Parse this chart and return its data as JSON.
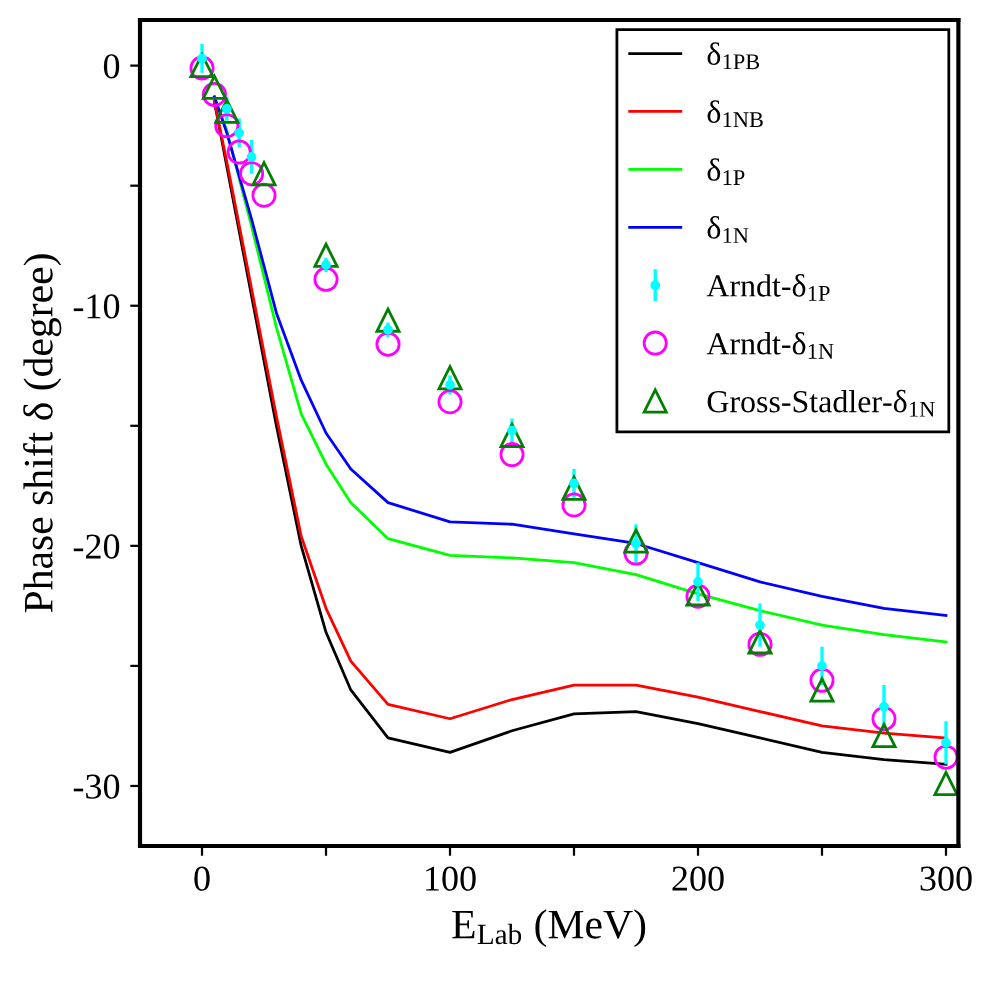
{
  "chart_data": {
    "type": "line",
    "xlabel": "E$_{Lab}$ (MeV)",
    "ylabel": "Phase shift δ (degree)",
    "xlim": [
      -25,
      305
    ],
    "ylim": [
      -32.5,
      1.9
    ],
    "xticks": [
      0,
      {
        "value": 50,
        "label": null
      },
      100,
      {
        "value": 150,
        "label": null
      },
      200,
      {
        "value": 250,
        "label": null
      },
      300
    ],
    "yticks": [
      {
        "value": -30,
        "label": "-30"
      },
      {
        "value": -25,
        "label": null
      },
      {
        "value": -20,
        "label": "-20"
      },
      {
        "value": -15,
        "label": null
      },
      {
        "value": -10,
        "label": "-10"
      },
      {
        "value": -5,
        "label": null
      },
      0
    ],
    "grid": false,
    "legend": "top right",
    "series": [
      {
        "name": "δ$_{1PB}$",
        "color": "#000000",
        "x": [
          5,
          10,
          20,
          30,
          40,
          50,
          60,
          75,
          100,
          125,
          150,
          175,
          200,
          225,
          250,
          275,
          300
        ],
        "values": [
          -1.5,
          -4.2,
          -9.6,
          -15.0,
          -20.0,
          -23.6,
          -26.0,
          -28.0,
          -28.6,
          -27.7,
          -27.0,
          -26.9,
          -27.4,
          -28.0,
          -28.6,
          -28.9,
          -29.1
        ]
      },
      {
        "name": "δ$_{1NB}$",
        "color": "#ff0000",
        "x": [
          5,
          10,
          20,
          30,
          40,
          50,
          60,
          75,
          100,
          125,
          150,
          175,
          200,
          225,
          250,
          275,
          300
        ],
        "values": [
          -1.5,
          -4.0,
          -9.3,
          -14.6,
          -19.6,
          -22.6,
          -24.8,
          -26.6,
          -27.2,
          -26.4,
          -25.8,
          -25.8,
          -26.3,
          -26.9,
          -27.5,
          -27.8,
          -28.0
        ]
      },
      {
        "name": "δ$_{1P}$",
        "color": "#00ff00",
        "x": [
          5,
          10,
          20,
          30,
          40,
          50,
          60,
          75,
          100,
          125,
          150,
          175,
          200,
          225,
          250,
          275,
          300
        ],
        "values": [
          -1.3,
          -2.7,
          -6.7,
          -10.9,
          -14.5,
          -16.6,
          -18.2,
          -19.7,
          -20.4,
          -20.5,
          -20.7,
          -21.2,
          -22.0,
          -22.7,
          -23.3,
          -23.7,
          -24.0
        ]
      },
      {
        "name": "δ$_{1N}$",
        "color": "#0000ff",
        "x": [
          5,
          10,
          20,
          30,
          40,
          50,
          60,
          75,
          100,
          125,
          150,
          175,
          200,
          225,
          250,
          275,
          300
        ],
        "values": [
          -1.3,
          -2.8,
          -6.4,
          -10.3,
          -13.1,
          -15.3,
          -16.8,
          -18.2,
          -19.0,
          -19.1,
          -19.5,
          -19.9,
          -20.7,
          -21.5,
          -22.1,
          -22.6,
          -22.9
        ]
      },
      {
        "name": "Arndt-δ$_{1P}$",
        "type": "scatter",
        "color": "#00ffff",
        "errors": [
          0.6,
          0.5,
          0.6,
          0.7,
          0.3,
          0.3,
          0.4,
          0.5,
          0.6,
          0.8,
          0.8,
          0.9,
          0.8,
          0.9,
          0.9
        ],
        "x": [
          0,
          10,
          15,
          20,
          50,
          75,
          100,
          125,
          150,
          175,
          200,
          225,
          250,
          275,
          300
        ],
        "values": [
          0.3,
          -1.8,
          -2.8,
          -3.8,
          -8.3,
          -11.0,
          -13.3,
          -15.2,
          -17.4,
          -19.9,
          -21.5,
          -23.3,
          -25.0,
          -26.7,
          -28.2
        ]
      },
      {
        "name": "Arndt-δ$_{1N}$",
        "type": "scatter",
        "marker": "circle",
        "color": "#ff00ff",
        "x": [
          0,
          5,
          10,
          15,
          20,
          25,
          50,
          75,
          100,
          125,
          150,
          175,
          200,
          225,
          250,
          275,
          300
        ],
        "values": [
          -0.1,
          -1.2,
          -2.5,
          -3.6,
          -4.5,
          -5.4,
          -8.9,
          -11.6,
          -14.0,
          -16.2,
          -18.3,
          -20.3,
          -22.1,
          -24.1,
          -25.6,
          -27.2,
          -28.8
        ]
      },
      {
        "name": "Gross-Stadler-δ$_{1N}$",
        "type": "scatter",
        "marker": "triangle",
        "color": "#008000",
        "x": [
          0,
          5,
          10,
          25,
          50,
          75,
          100,
          125,
          150,
          175,
          200,
          225,
          250,
          275,
          300
        ],
        "values": [
          0.0,
          -0.9,
          -1.9,
          -4.5,
          -7.9,
          -10.6,
          -13.0,
          -15.4,
          -17.6,
          -19.8,
          -22.0,
          -24.0,
          -26.0,
          -27.9,
          -29.9
        ]
      }
    ]
  }
}
